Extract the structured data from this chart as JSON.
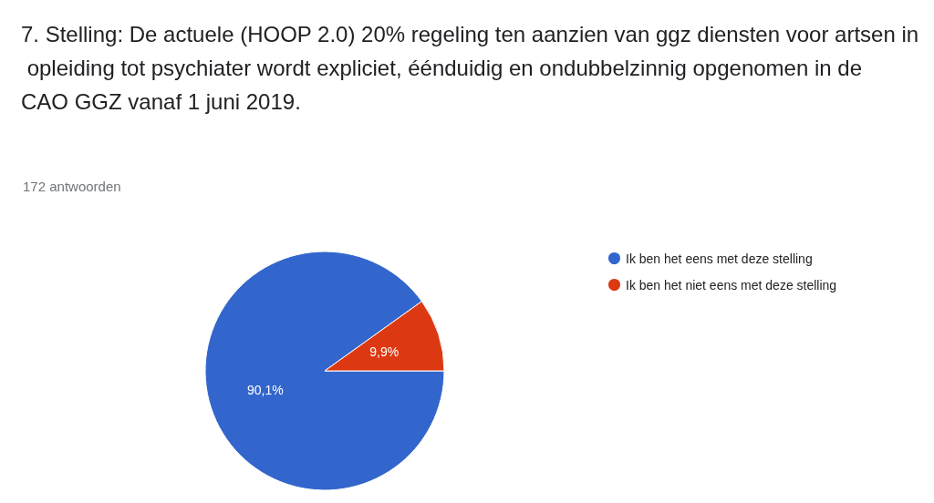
{
  "chart_data": {
    "type": "pie",
    "title": "7. Stelling: De actuele (HOOP 2.0) 20% regeling ten aanzien van ggz diensten voor artsen in opleiding tot psychiater wordt expliciet, éénduidig en ondubbelzinnig opgenomen in de CAO GGZ vanaf 1 juni 2019.",
    "subtitle": "172 antwoorden",
    "categories": [
      "Ik ben het eens met deze stelling",
      "Ik ben het niet eens met deze stelling"
    ],
    "values": [
      90.1,
      9.9
    ],
    "colors": [
      "#3366cc",
      "#dc3912"
    ],
    "value_labels": [
      "90,1%",
      "9,9%"
    ],
    "legend": "right"
  }
}
